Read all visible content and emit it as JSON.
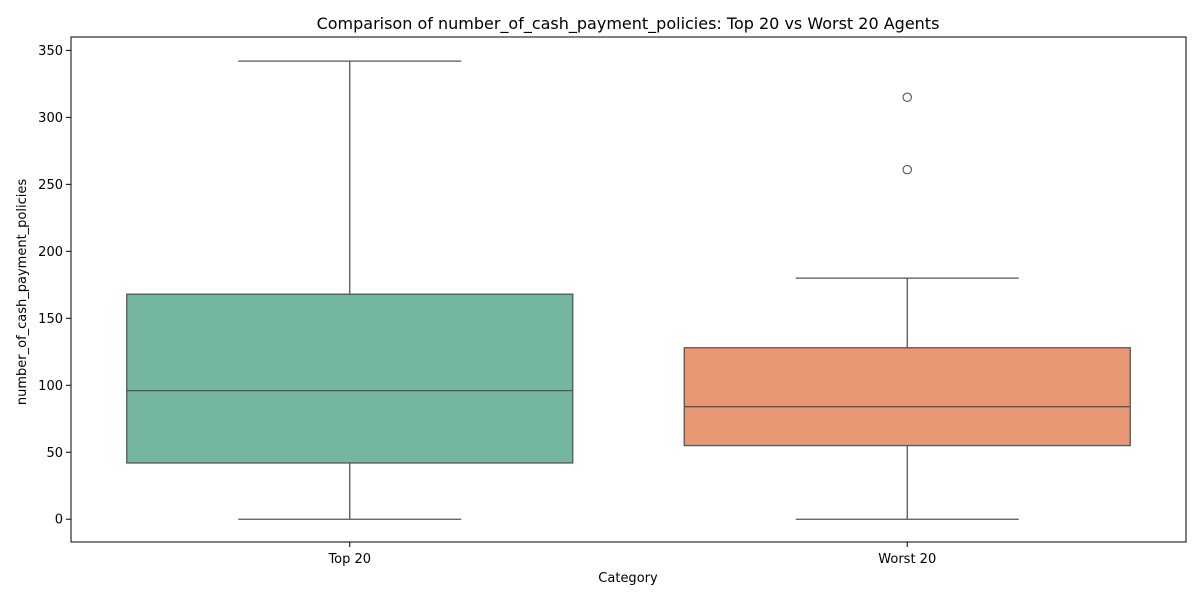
{
  "chart_data": {
    "type": "box",
    "title": "Comparison of number_of_cash_payment_policies: Top 20 vs Worst 20 Agents",
    "xlabel": "Category",
    "ylabel": "number_of_cash_payment_policies",
    "ylim": [
      -17,
      360
    ],
    "yticks": [
      0,
      50,
      100,
      150,
      200,
      250,
      300,
      350
    ],
    "grid": false,
    "legend": "none",
    "categories": [
      "Top 20",
      "Worst 20"
    ],
    "boxes": [
      {
        "category": "Top 20",
        "whisker_low": 0,
        "q1": 42,
        "median": 96,
        "q3": 168,
        "whisker_high": 342,
        "outliers": [],
        "color": "#75b6a1"
      },
      {
        "category": "Worst 20",
        "whisker_low": 0,
        "q1": 55,
        "median": 84,
        "q3": 128,
        "whisker_high": 180,
        "outliers": [
          261,
          315
        ],
        "color": "#e99876"
      }
    ],
    "line_color": "#555555"
  }
}
